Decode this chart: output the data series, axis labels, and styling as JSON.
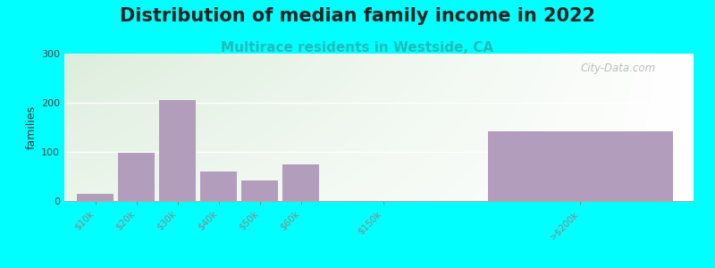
{
  "title": "Distribution of median family income in 2022",
  "subtitle": "Multirace residents in Westside, CA",
  "ylabel": "families",
  "background_color": "#00FFFF",
  "bar_color": "#b39dbd",
  "watermark": "City-Data.com",
  "ylim": [
    0,
    300
  ],
  "yticks": [
    0,
    100,
    200,
    300
  ],
  "categories": [
    "$10k",
    "$20k",
    "$30k",
    "$40k",
    "$50k",
    "$60k",
    "$150k",
    ">$200k"
  ],
  "values": [
    15,
    98,
    205,
    60,
    42,
    75,
    0,
    142
  ],
  "bar_positions": [
    0,
    1,
    2,
    3,
    4,
    5,
    7,
    10
  ],
  "bar_widths": [
    0.9,
    0.9,
    0.9,
    0.9,
    0.9,
    0.9,
    0.9,
    4.5
  ],
  "tick_positions": [
    0.45,
    1.45,
    2.45,
    3.45,
    4.45,
    5.45,
    7.45,
    12.25
  ],
  "xmin": -0.3,
  "xmax": 15.0,
  "grad_color_left": "#ddeedd",
  "grad_color_right": "#f8f8f0",
  "title_fontsize": 15,
  "subtitle_fontsize": 11,
  "subtitle_color": "#22bbbb",
  "watermark_color": "#b0b0b0"
}
